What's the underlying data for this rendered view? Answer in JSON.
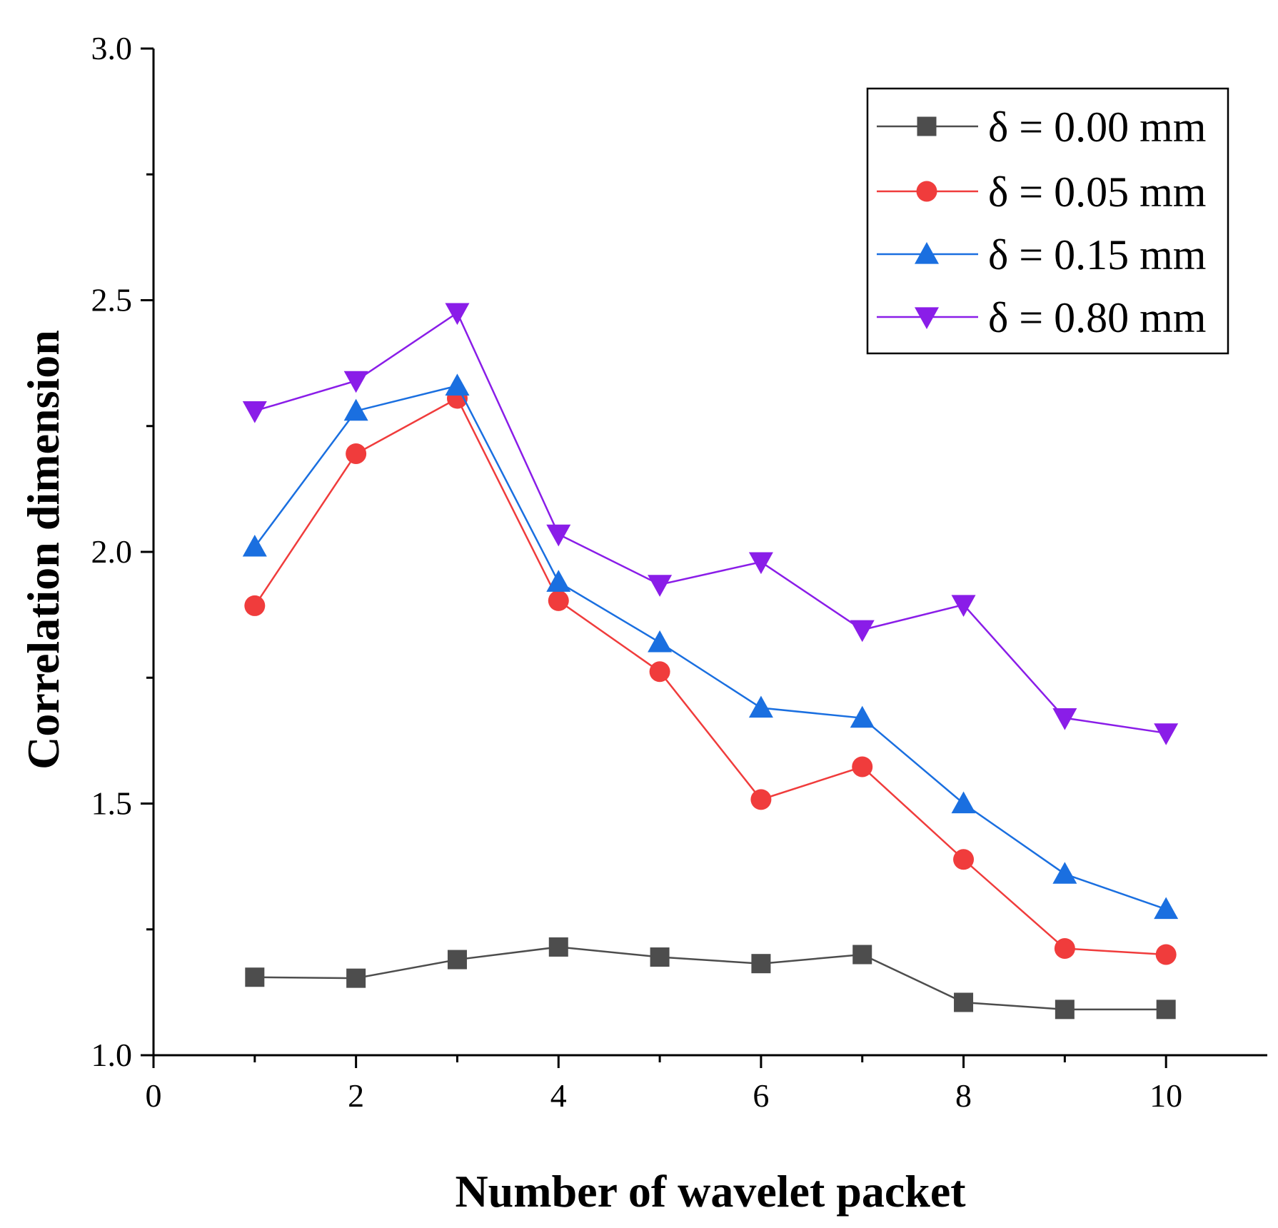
{
  "chart_data": {
    "type": "line",
    "title": "",
    "xlabel": "Number of wavelet packet",
    "ylabel": "Correlation dimension",
    "xlim": [
      0,
      11
    ],
    "ylim": [
      1.0,
      3.0
    ],
    "x_ticks": [
      0,
      2,
      4,
      6,
      8,
      10
    ],
    "y_ticks": [
      1.0,
      1.5,
      2.0,
      2.5,
      3.0
    ],
    "x_tick_labels": [
      "0",
      "2",
      "4",
      "6",
      "8",
      "10"
    ],
    "y_tick_labels": [
      "1.0",
      "1.5",
      "2.0",
      "2.5",
      "3.0"
    ],
    "grid": false,
    "legend_position": "top-right",
    "x": [
      1,
      2,
      3,
      4,
      5,
      6,
      7,
      8,
      9,
      10
    ],
    "series": [
      {
        "name": "δ = 0.00 mm",
        "color": "#4d4d4d",
        "marker": "square",
        "values": [
          1.155,
          1.153,
          1.19,
          1.215,
          1.195,
          1.182,
          1.2,
          1.105,
          1.091,
          1.091
        ]
      },
      {
        "name": "δ = 0.05 mm",
        "color": "#f03c3c",
        "marker": "circle",
        "values": [
          1.893,
          2.195,
          2.305,
          1.903,
          1.762,
          1.508,
          1.573,
          1.389,
          1.212,
          1.2
        ]
      },
      {
        "name": "δ = 0.15 mm",
        "color": "#1a6fe0",
        "marker": "triangle-up",
        "values": [
          2.01,
          2.28,
          2.33,
          1.94,
          1.82,
          1.69,
          1.67,
          1.5,
          1.36,
          1.29
        ]
      },
      {
        "name": "δ = 0.80 mm",
        "color": "#8a1de8",
        "marker": "triangle-down",
        "values": [
          2.28,
          2.34,
          2.475,
          2.035,
          1.935,
          1.98,
          1.845,
          1.895,
          1.67,
          1.64
        ]
      }
    ]
  }
}
